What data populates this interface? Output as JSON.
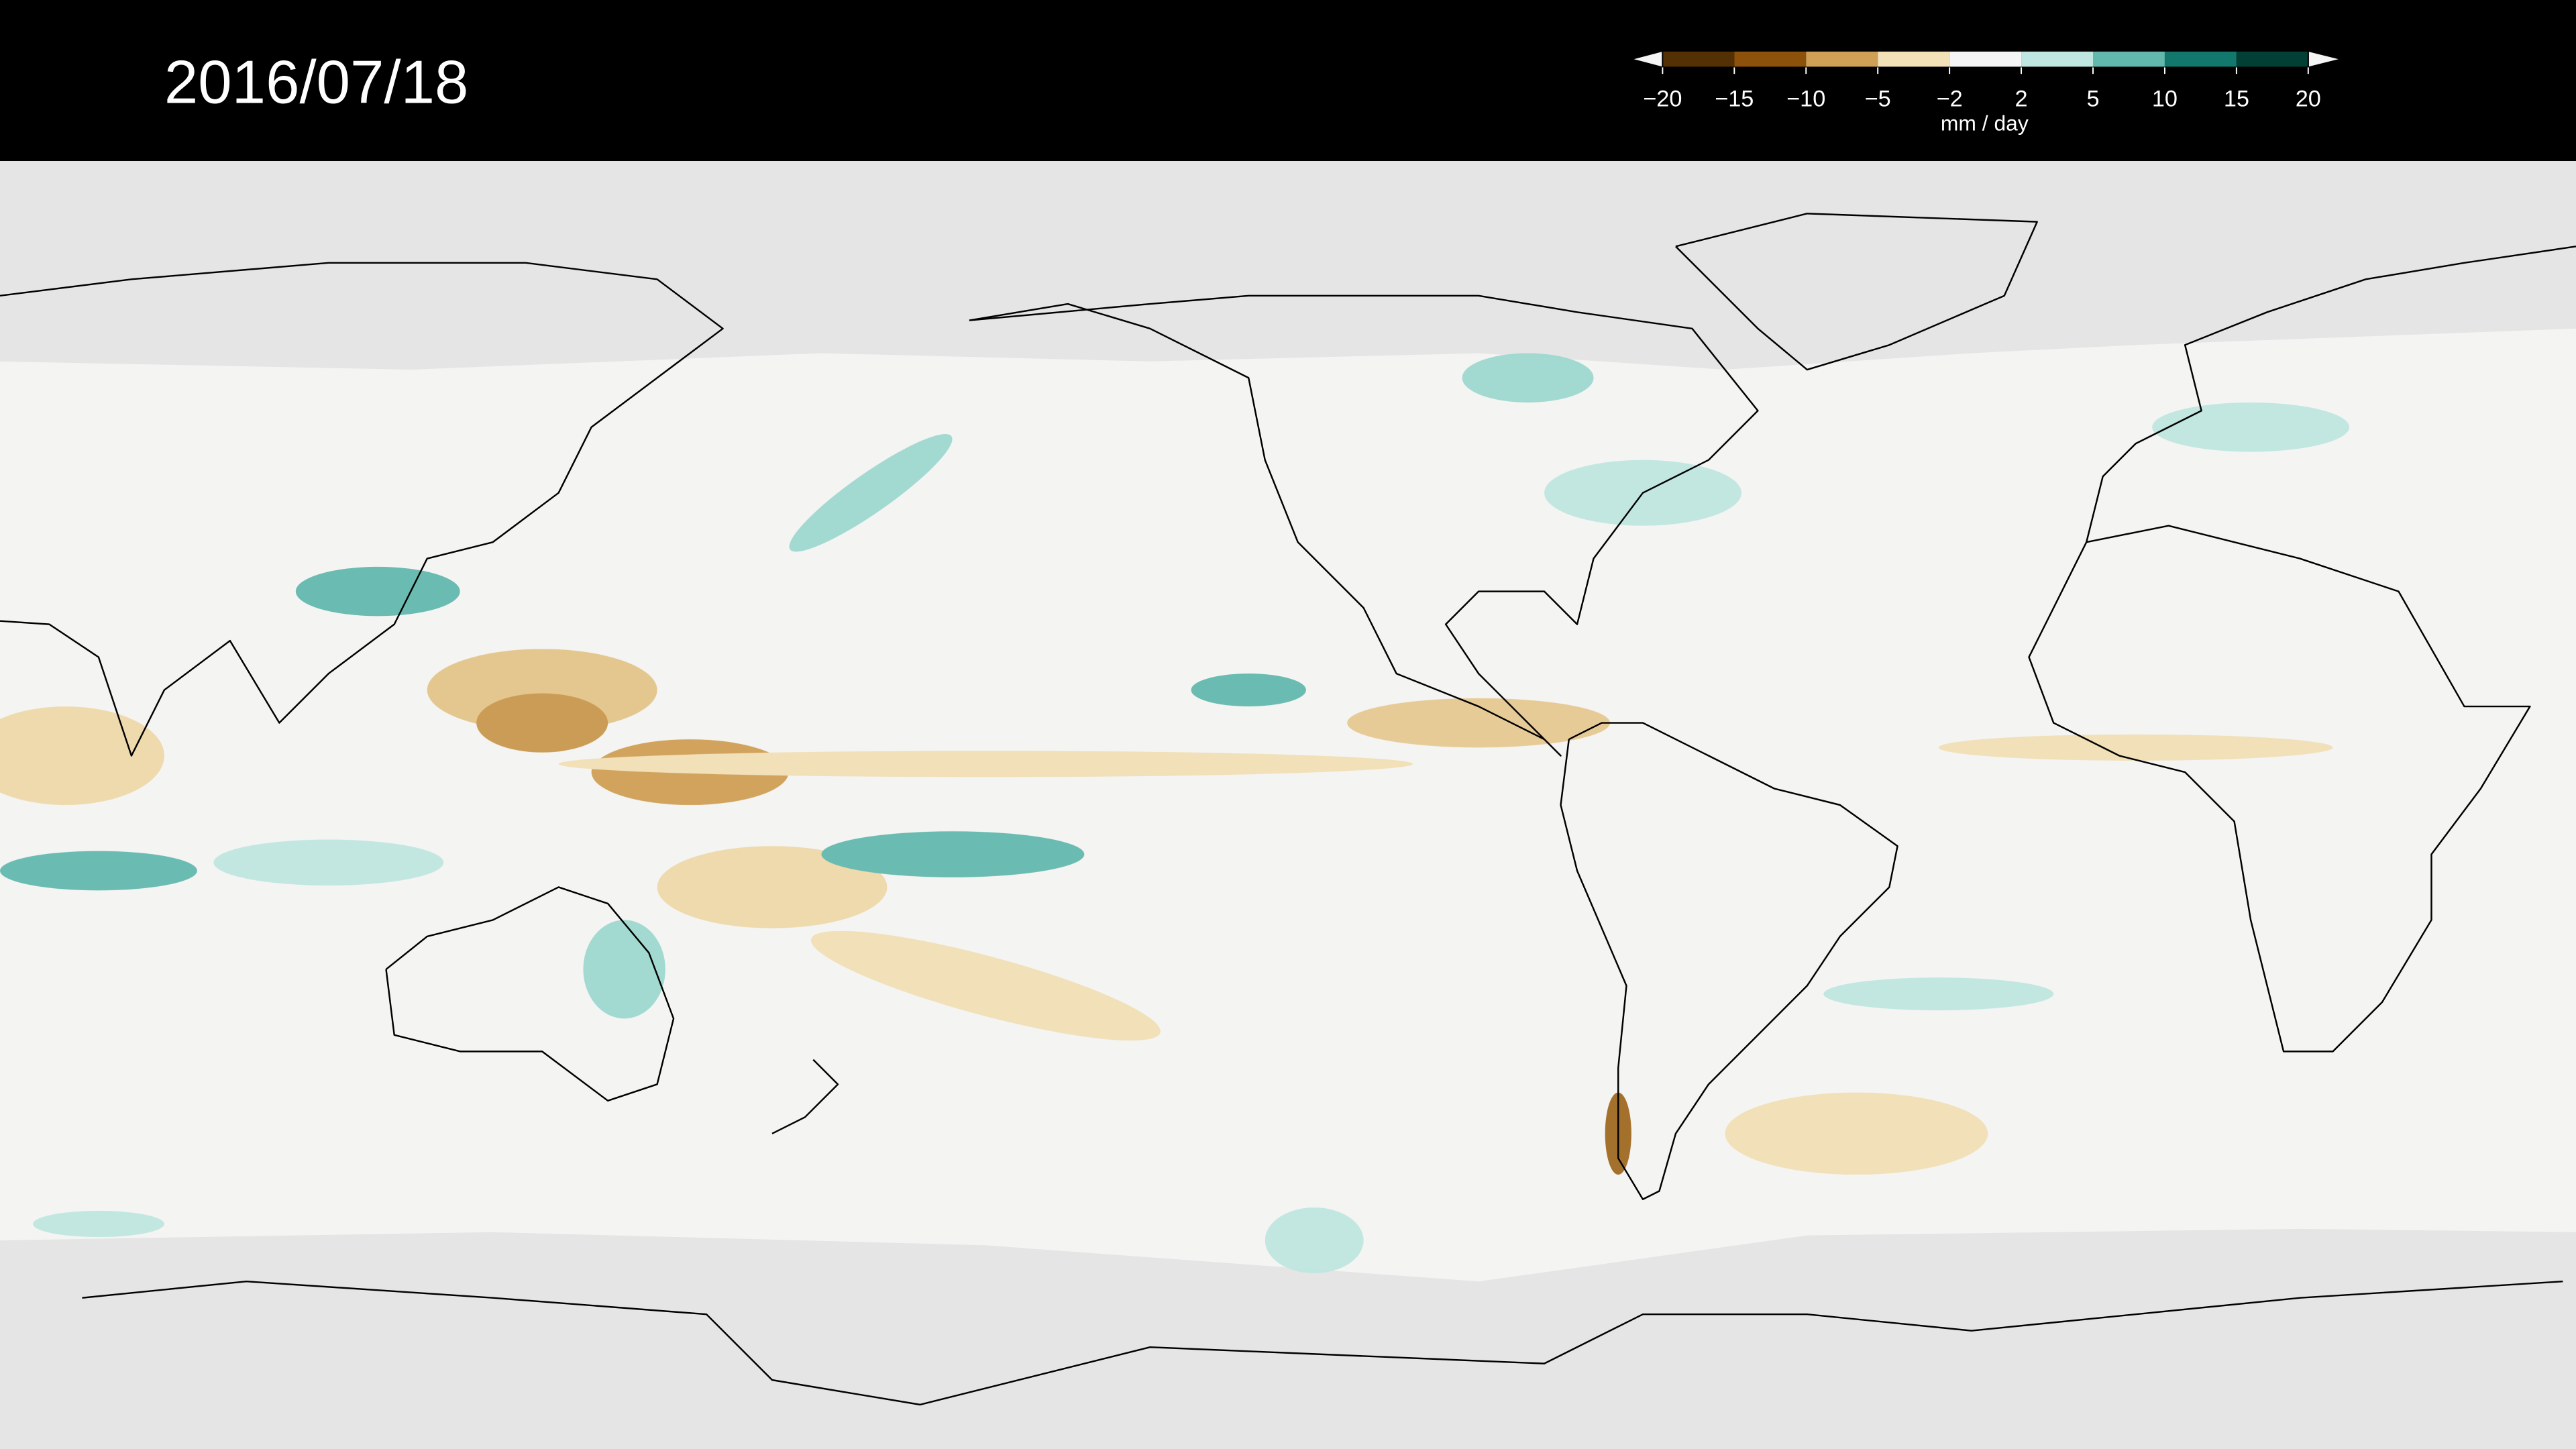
{
  "header": {
    "date": "2016/07/18"
  },
  "colorbar": {
    "unit": "mm / day",
    "ticks": [
      {
        "value": -20,
        "label": "−20"
      },
      {
        "value": -15,
        "label": "−15"
      },
      {
        "value": -10,
        "label": "−10"
      },
      {
        "value": -5,
        "label": "−5"
      },
      {
        "value": -2,
        "label": "−2"
      },
      2,
      5,
      10,
      15,
      20
    ],
    "colors": [
      "#543005",
      "#8c510a",
      "#d0a056",
      "#f3e1b8",
      "#f5f5f5",
      "#bfe6e0",
      "#62b8ad",
      "#12776c",
      "#023f34"
    ]
  }
}
